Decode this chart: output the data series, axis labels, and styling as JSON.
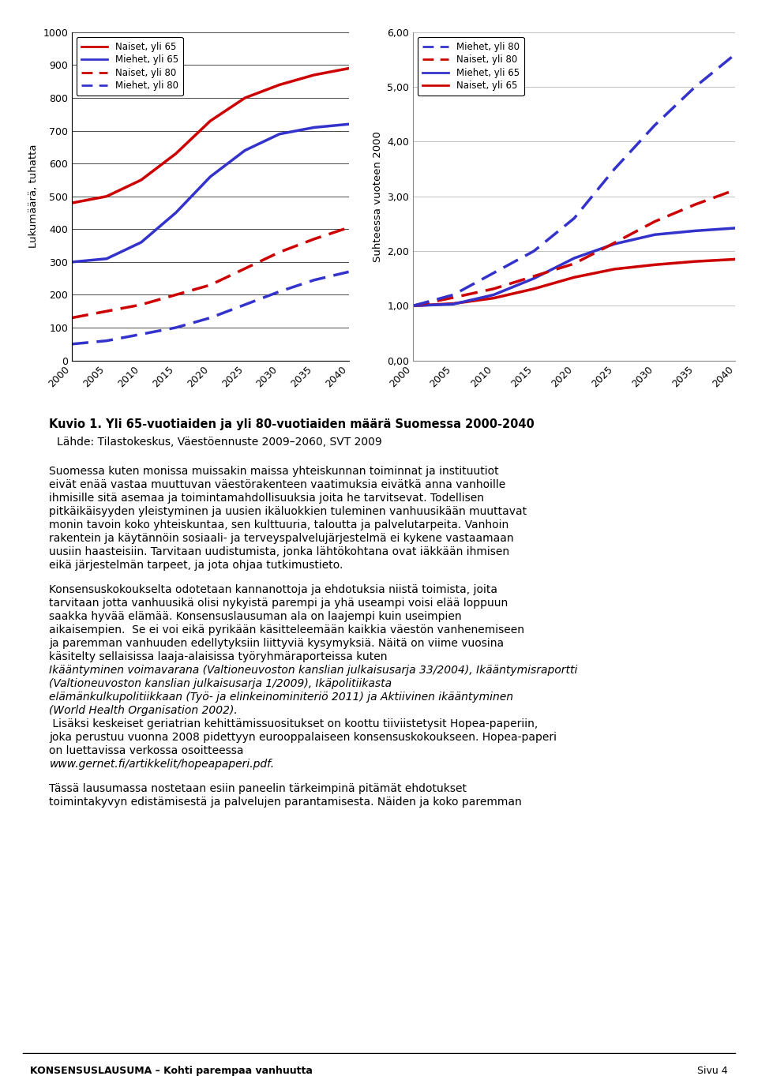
{
  "years": [
    2000,
    2005,
    2010,
    2015,
    2020,
    2025,
    2030,
    2035,
    2040
  ],
  "left": {
    "naiset_65": [
      480,
      500,
      550,
      630,
      730,
      800,
      840,
      870,
      890
    ],
    "miehet_65": [
      300,
      310,
      360,
      450,
      560,
      640,
      690,
      710,
      720
    ],
    "naiset_80": [
      130,
      150,
      170,
      200,
      230,
      280,
      330,
      370,
      405
    ],
    "miehet_80": [
      50,
      60,
      80,
      100,
      130,
      170,
      210,
      245,
      270
    ]
  },
  "right": {
    "naiset_65": [
      1.0,
      1.04,
      1.14,
      1.31,
      1.52,
      1.67,
      1.75,
      1.81,
      1.85
    ],
    "miehet_65": [
      1.0,
      1.03,
      1.2,
      1.5,
      1.87,
      2.13,
      2.3,
      2.37,
      2.42
    ],
    "naiset_80": [
      1.0,
      1.15,
      1.31,
      1.54,
      1.77,
      2.15,
      2.54,
      2.85,
      3.12
    ],
    "miehet_80": [
      1.0,
      1.2,
      1.6,
      2.0,
      2.6,
      3.5,
      4.3,
      5.0,
      5.6
    ]
  },
  "color_naiset": "#cc0000",
  "color_miehet": "#3333cc",
  "left_ylabel": "Lukumäärä, tuhatta",
  "right_ylabel": "Suhteessa vuoteen 2000",
  "left_ylim": [
    0,
    1000
  ],
  "right_ylim": [
    0.0,
    6.0
  ],
  "left_yticks": [
    0,
    100,
    200,
    300,
    400,
    500,
    600,
    700,
    800,
    900,
    1000
  ],
  "right_yticks": [
    0.0,
    1.0,
    2.0,
    3.0,
    4.0,
    5.0,
    6.0
  ],
  "right_ytick_labels": [
    "0,00",
    "1,00",
    "2,00",
    "3,00",
    "4,00",
    "5,00",
    "6,00"
  ],
  "caption_bold": "Kuvio 1. Yli 65-vuotiaiden ja yli 80-vuotiaiden määrä Suomessa 2000-2040",
  "caption_source": "Lähde: Tilastokeskus, Väestöennuste 2009–2060, SVT 2009",
  "para1": "Suomessa kuten monissa muissakin maissa yhteiskunnan toiminnat ja instituutiot eivät enää vastaa muuttuvan väestörakenteen vaatimuksia eivätkä anna vanhoille ihmisille sitä asemaa ja toimintamahdollisuuksia joita he tarvitsevat. Todellisen pitkäikäisyyden yleistyminen ja uusien ikäluokkien tuleminen vanhuusikään muuttavat monin tavoin koko yhteiskuntaa, sen kulttuuria, taloutta ja palvelutarpeita. Vanhoin rakentein ja käytännöin sosiaali- ja terveyspalvelujärjestelmä ei kykene vastaamaan uusiin haasteisiin. Tarvitaan uudistumista, jonka lähtökohtana ovat iäkkään ihmisen eikä järjestelmän tarpeet, ja jota ohjaa tutkimustieto.",
  "para2_normal": "Konsensuskokoukselta odotetaan kannanottoja ja ehdotuksia niistä toimista, joita tarvitaan jotta vanhuusikä olisi nykyistä parempi ja yhä useampi voisi elää loppuun saakka hyvää elämää. Konsensuslausuman ala on laajempi kuin useimpien aikaisempien.  Se ei voi eikä pyrikään käsitteleemään kaikkia väestön vanhenemiseen ja paremman vanhuuden edellytyksiin liittyviä kysymyksiä. Näitä on viime vuosina käsitelty sellaisissa laaja-alaisissa työryhmäraporteissa kuten ",
  "para2_italic": "Ikääntyminen voimavarana (Valtioneuvoston kanslian julkaisusarja 33/2004), Ikääntymisraportti (Valtioneuvoston kanslian julkaisusarja 1/2009), Ikäpolitiikasta elämänkulkupolitiikkaan (Työ- ja elinkeinominiteriö 2011) ja Aktiivinen ikääntyminen (World Health Organisation 2002).",
  "para2_normal2": " Lisäksi keskeiset geriatrian kehittämissuositukset on koottu tiiviistetysit Hopea-paperiin, joka perustuu vuonna 2008 pidettyyn eurooppalaiseen konsensuskokoukseen. Hopea-paperi on luettavissa verkossa osoitteessa ",
  "para2_italic2": "www.gernet.fi/artikkelit/hopeapaperi.pdf.",
  "para3": "Tässä lausumassa nostetaan esiin paneelin tärkeimpinä pitämät ehdotukset toimintakyvyn edistämisestä ja palvelujen parantamisesta. Näiden ja koko paremman",
  "footer_left": "KONSENSUSLAUSUMA – Kohti parempaa vanhuutta",
  "footer_right": "Sivu 4"
}
